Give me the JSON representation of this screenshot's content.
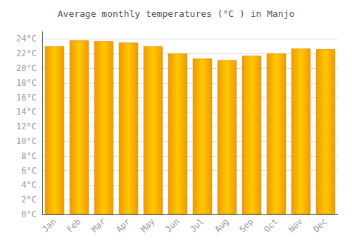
{
  "chart_data": {
    "type": "bar",
    "title": "Average monthly temperatures (°C ) in Manjo",
    "categories": [
      "Jan",
      "Feb",
      "Mar",
      "Apr",
      "May",
      "Jun",
      "Jul",
      "Aug",
      "Sep",
      "Oct",
      "Nov",
      "Dec"
    ],
    "values": [
      23.0,
      23.8,
      23.7,
      23.5,
      23.0,
      22.0,
      21.3,
      21.1,
      21.7,
      22.0,
      22.7,
      22.6
    ],
    "color": "#FFC800",
    "ylim": [
      0,
      25
    ],
    "yticks": [
      {
        "value": 0,
        "label": "0°C"
      },
      {
        "value": 2,
        "label": "2°C"
      },
      {
        "value": 4,
        "label": "4°C"
      },
      {
        "value": 6,
        "label": "6°C"
      },
      {
        "value": 8,
        "label": "8°C"
      },
      {
        "value": 10,
        "label": "10°C"
      },
      {
        "value": 12,
        "label": "12°C"
      },
      {
        "value": 14,
        "label": "14°C"
      },
      {
        "value": 16,
        "label": "16°C"
      },
      {
        "value": 18,
        "label": "18°C"
      },
      {
        "value": 20,
        "label": "20°C"
      },
      {
        "value": 22,
        "label": "22°C"
      },
      {
        "value": 24,
        "label": "24°C"
      }
    ],
    "grid": true
  }
}
